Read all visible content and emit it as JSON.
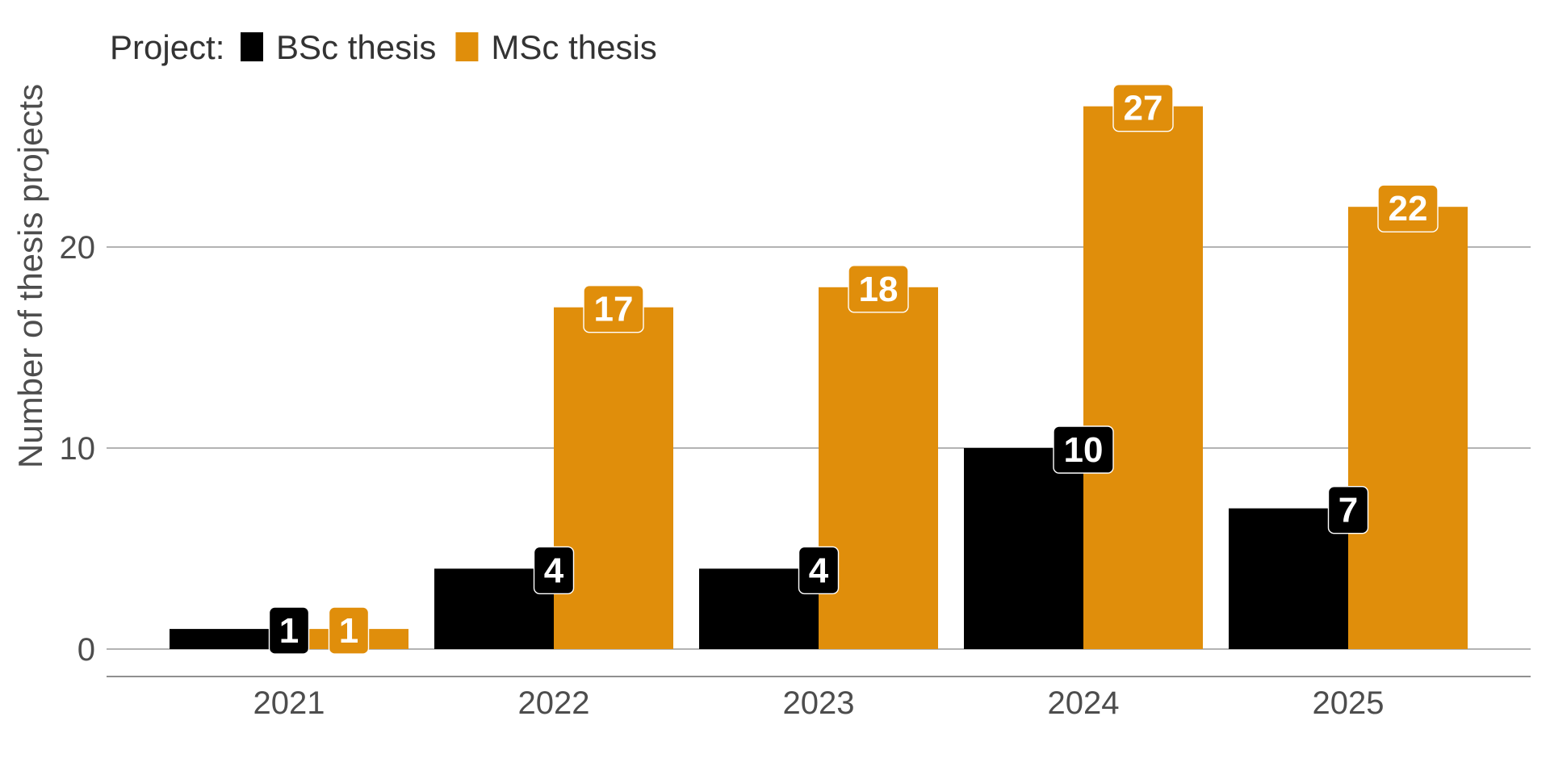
{
  "chart_data": {
    "type": "bar",
    "categories": [
      "2021",
      "2022",
      "2023",
      "2024",
      "2025"
    ],
    "series": [
      {
        "name": "BSc thesis",
        "values": [
          1,
          4,
          4,
          10,
          7
        ],
        "color": "#000000"
      },
      {
        "name": "MSc thesis",
        "values": [
          1,
          17,
          18,
          27,
          22
        ],
        "color": "#E08E0B"
      }
    ],
    "title": "",
    "xlabel": "",
    "ylabel": "Number of thesis projects",
    "ylim": [
      0,
      27
    ],
    "yticks": [
      "0",
      "10",
      "20"
    ],
    "legend": {
      "title": "Project:",
      "placement": "top-left"
    },
    "grid": "horizontal major",
    "data_labels": true
  }
}
